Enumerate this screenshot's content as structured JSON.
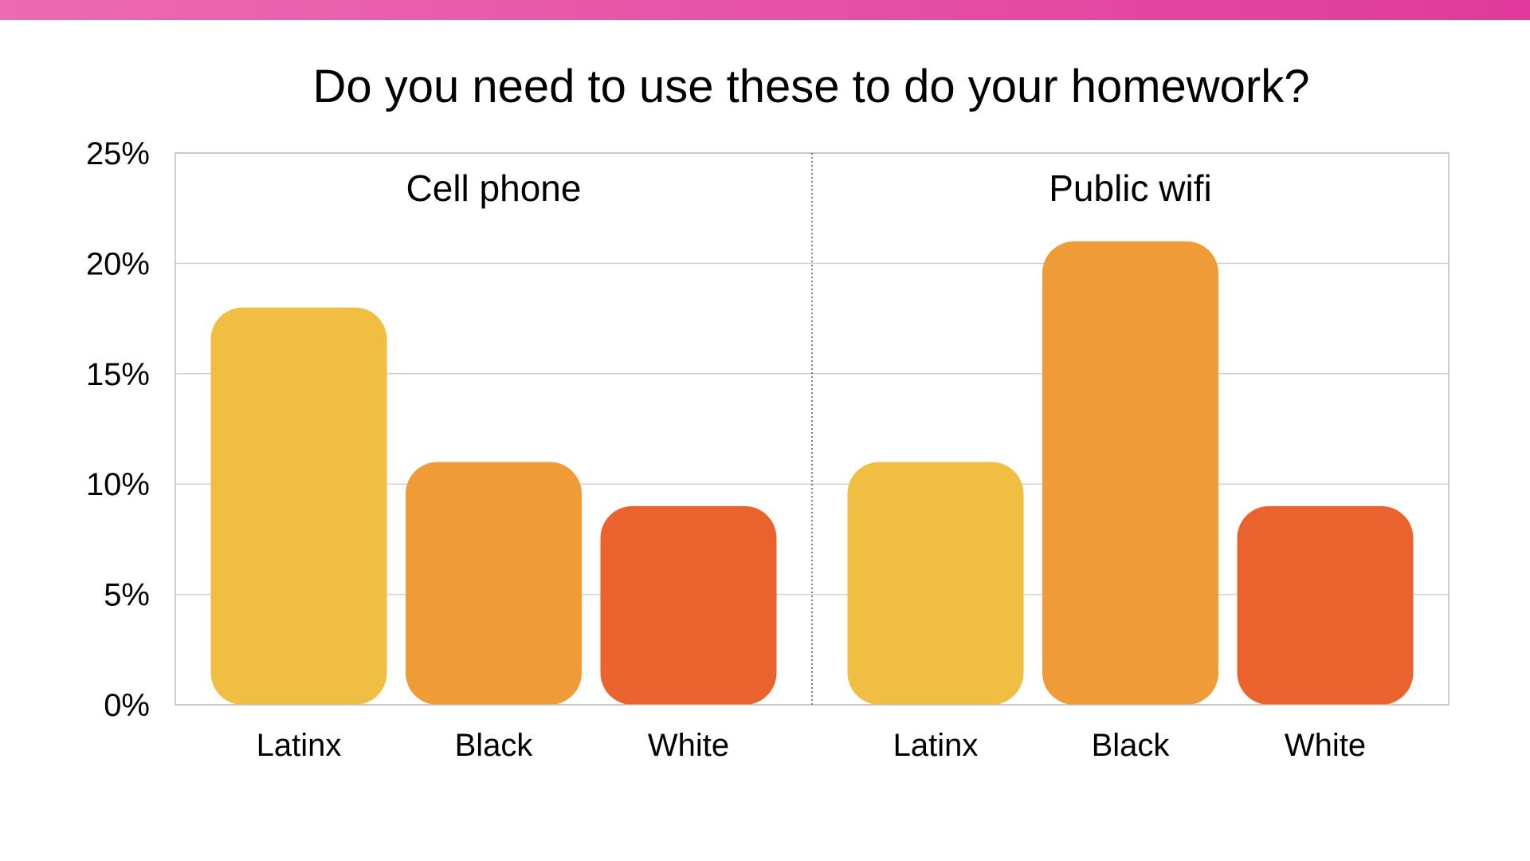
{
  "colors": {
    "banner_start": "#ec6bb1",
    "banner_end": "#e03a9c",
    "latinx": "#efbe42",
    "black": "#ef9b38",
    "white": "#ea632c",
    "gridline": "#d2d2d2",
    "frame": "#bdbdbd",
    "divider": "#555555"
  },
  "chart_data": {
    "type": "bar",
    "title": "Do you need to use these to do your homework?",
    "xlabel": "",
    "ylabel": "",
    "ylim": [
      0,
      25
    ],
    "y_ticks": [
      "0%",
      "5%",
      "10%",
      "15%",
      "20%",
      "25%"
    ],
    "y_tick_values": [
      0,
      5,
      10,
      15,
      20,
      25
    ],
    "grid": true,
    "panels": [
      {
        "title": "Cell phone",
        "categories": [
          "Latinx",
          "Black",
          "White"
        ],
        "values": [
          18,
          11,
          9
        ],
        "color_keys": [
          "latinx",
          "black",
          "white"
        ]
      },
      {
        "title": "Public wifi",
        "categories": [
          "Latinx",
          "Black",
          "White"
        ],
        "values": [
          11,
          21,
          9
        ],
        "color_keys": [
          "latinx",
          "black",
          "white"
        ]
      }
    ]
  }
}
